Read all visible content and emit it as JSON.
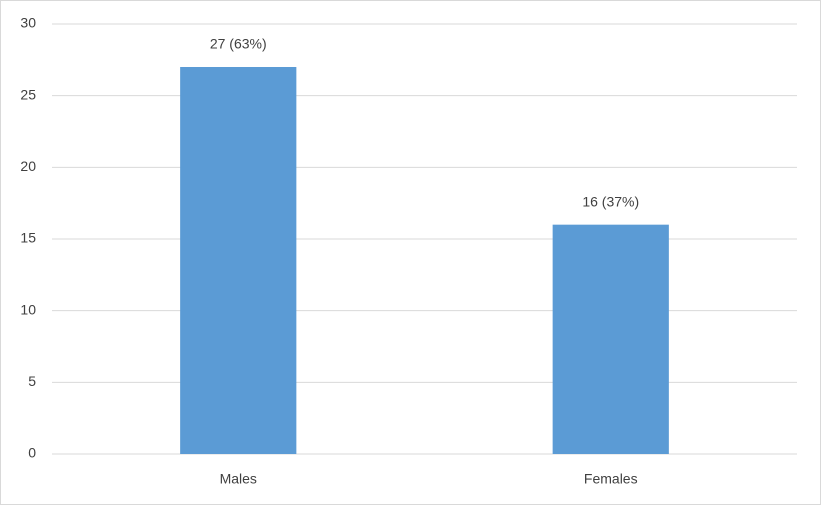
{
  "chart_data": {
    "type": "bar",
    "categories": [
      "Males",
      "Females"
    ],
    "values": [
      27,
      16
    ],
    "value_labels": [
      "27 (63%)",
      "16 (37%)"
    ],
    "color": "#5b9bd5",
    "ylim": [
      0,
      30
    ],
    "yticks": [
      0,
      5,
      10,
      15,
      20,
      25,
      30
    ],
    "grid": true
  }
}
